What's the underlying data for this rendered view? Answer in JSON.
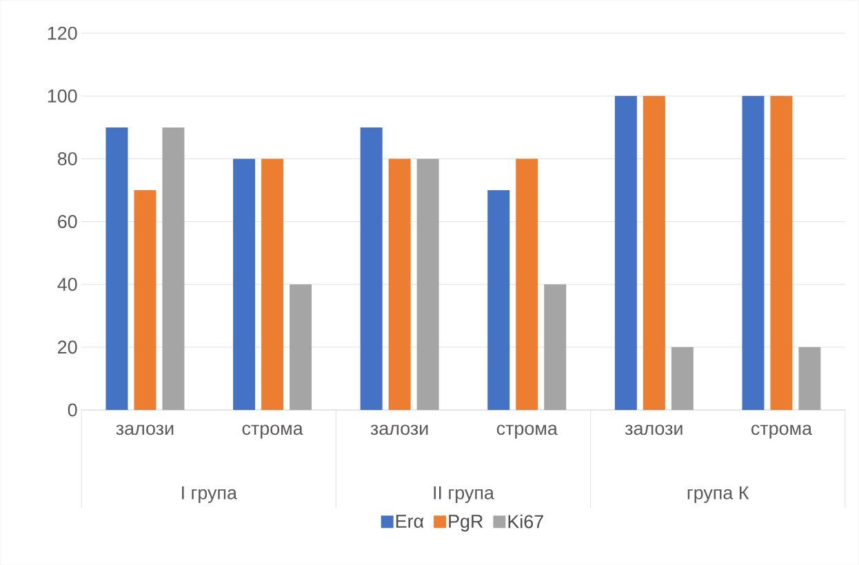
{
  "chart_data": {
    "type": "bar",
    "categories": [
      "залози",
      "строма",
      "залози",
      "строма",
      "залози",
      "строма"
    ],
    "annotations": [
      "I група",
      "II група",
      "група К"
    ],
    "series": [
      {
        "name": "Erα",
        "color": "#4472c4",
        "values": [
          90,
          80,
          90,
          70,
          100,
          100
        ]
      },
      {
        "name": "PgR",
        "color": "#ed7d31",
        "values": [
          70,
          80,
          80,
          80,
          100,
          100
        ]
      },
      {
        "name": "Ki67",
        "color": "#a5a5a5",
        "values": [
          90,
          40,
          80,
          40,
          20,
          20
        ]
      }
    ],
    "ylim": [
      0,
      120
    ],
    "yticks": [
      0,
      20,
      40,
      60,
      80,
      100,
      120
    ],
    "grid": "y",
    "legend": "bottom"
  }
}
